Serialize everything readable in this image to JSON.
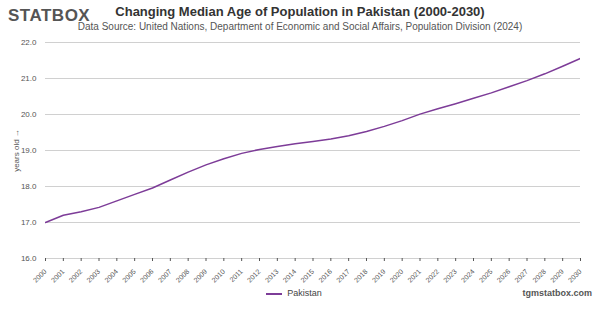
{
  "chart_data": {
    "type": "line",
    "logo": "STATBOX",
    "title": "Changing Median Age of Population in Pakistan (2000-2030)",
    "subtitle": "Data Source: United Nations, Department of Economic and Social Affairs, Population Division (2024)",
    "y_label": "years old",
    "source_site": "tgmstatbox.com",
    "x": [
      2000,
      2001,
      2002,
      2003,
      2004,
      2005,
      2006,
      2007,
      2008,
      2009,
      2010,
      2011,
      2012,
      2013,
      2014,
      2015,
      2016,
      2017,
      2018,
      2019,
      2020,
      2021,
      2022,
      2023,
      2024,
      2025,
      2026,
      2027,
      2028,
      2029,
      2030
    ],
    "series": [
      {
        "name": "Pakistan",
        "color": "#7d3c98",
        "values": [
          17.0,
          17.2,
          17.3,
          17.42,
          17.6,
          17.78,
          17.96,
          18.18,
          18.4,
          18.6,
          18.77,
          18.92,
          19.03,
          19.11,
          19.19,
          19.25,
          19.32,
          19.41,
          19.53,
          19.67,
          19.83,
          20.01,
          20.16,
          20.3,
          20.45,
          20.6,
          20.77,
          20.94,
          21.13,
          21.34,
          21.56
        ]
      }
    ],
    "xlim": [
      2000,
      2030
    ],
    "xticks": [
      2000,
      2001,
      2002,
      2003,
      2004,
      2005,
      2006,
      2007,
      2008,
      2009,
      2010,
      2011,
      2012,
      2013,
      2014,
      2015,
      2016,
      2017,
      2018,
      2019,
      2020,
      2021,
      2022,
      2023,
      2024,
      2025,
      2026,
      2027,
      2028,
      2029,
      2030
    ],
    "ylim": [
      16,
      22
    ],
    "yticks": [
      16,
      17,
      18,
      19,
      20,
      21,
      22
    ],
    "grid": true,
    "legend": "bottom"
  }
}
